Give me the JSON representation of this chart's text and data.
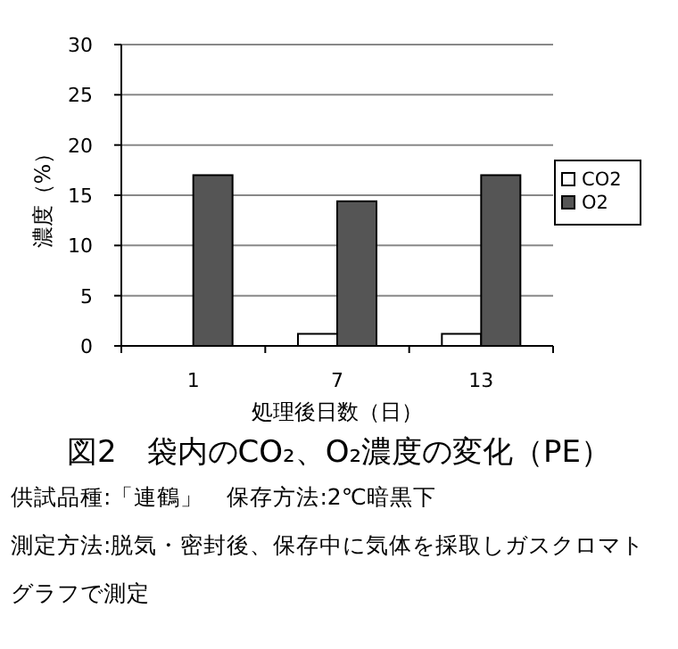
{
  "chart_data": {
    "type": "bar",
    "title": "図2　袋内のCO₂、O₂濃度の変化（PE）",
    "xlabel": "処理後日数（日）",
    "ylabel": "濃度（%）",
    "categories": [
      "1",
      "7",
      "13"
    ],
    "series": [
      {
        "name": "CO2",
        "color": "#ffffff",
        "values": [
          0,
          1.2,
          1.2
        ]
      },
      {
        "name": "O2",
        "color": "#555555",
        "values": [
          17,
          14.4,
          17
        ]
      }
    ],
    "ylim": [
      0,
      30
    ],
    "yticks": [
      0,
      5,
      10,
      15,
      20,
      25,
      30
    ],
    "grid": "y",
    "legend": "right",
    "annotations": [
      "供試品種:「連鶴」　保存方法:2℃暗黒下",
      "測定方法:脱気・密封後、保存中に気体を採取しガスクロマトグラフで測定"
    ]
  }
}
